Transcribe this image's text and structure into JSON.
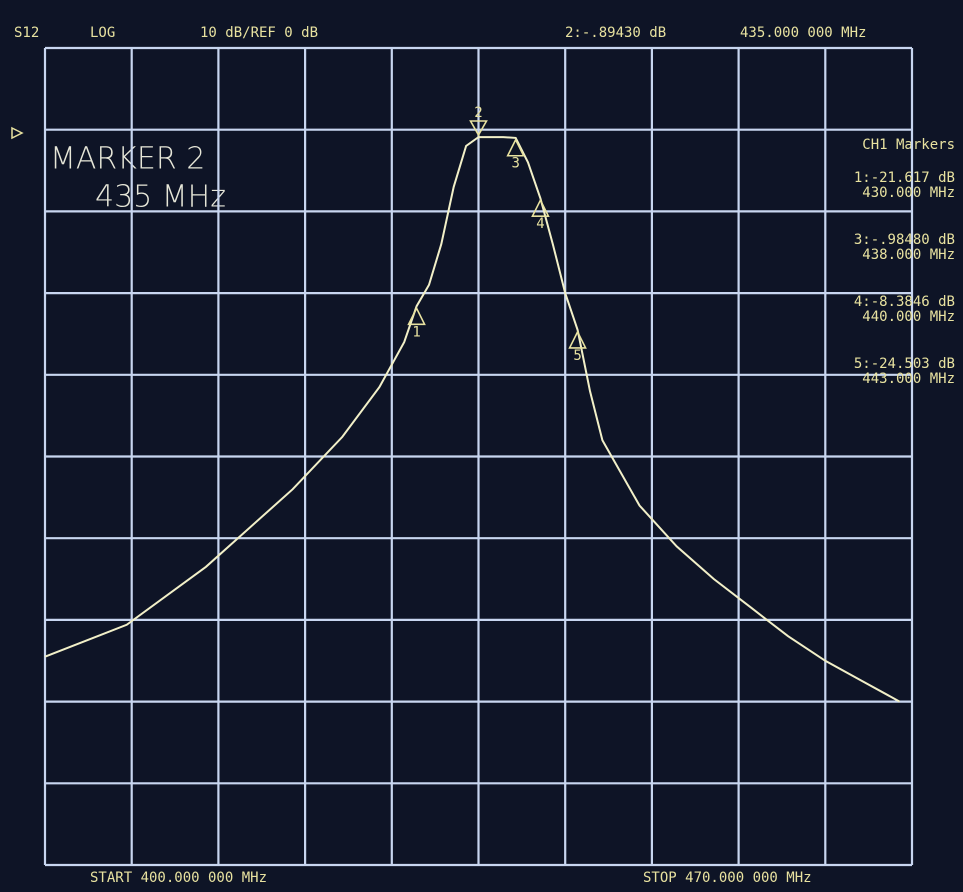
{
  "chart_data": {
    "type": "line",
    "header": {
      "param": "S12",
      "format": "LOG",
      "scale": "10 dB/REF 0 dB",
      "active_marker": "2:-.89430 dB",
      "active_freq": "435.000 000 MHz"
    },
    "big_marker": {
      "title": "MARKER 2",
      "freq": "435 MHz"
    },
    "marker_panel": {
      "title": "CH1 Markers",
      "entries": [
        {
          "value": "1:-21.617 dB",
          "freq": "430.000 MHz"
        },
        {
          "value": "3:-.98480 dB",
          "freq": "438.000 MHz"
        },
        {
          "value": "4:-8.3846 dB",
          "freq": "440.000 MHz"
        },
        {
          "value": "5:-24.503 dB",
          "freq": "443.000 MHz"
        }
      ]
    },
    "start": "START 400.000 000 MHz",
    "stop": "STOP 470.000 000 MHz",
    "x": [
      400,
      406.6,
      413,
      420,
      424,
      427,
      429,
      430,
      431,
      432,
      433,
      434,
      435,
      436,
      437,
      438,
      439,
      440,
      441,
      442,
      443,
      444,
      445,
      448,
      451,
      454,
      457,
      460,
      463,
      466,
      469
    ],
    "series": [
      {
        "name": "S12",
        "color": "#f2f0c8",
        "values": [
          -64.5,
          -60.6,
          -53.5,
          -44,
          -37.6,
          -31.5,
          -26,
          -21.6,
          -19,
          -14,
          -7,
          -2,
          -0.9,
          -0.9,
          -0.9,
          -1.0,
          -4,
          -8.4,
          -14,
          -20,
          -24.5,
          -32,
          -38,
          -46,
          -51,
          -55,
          -58.5,
          -62,
          -65,
          -67.5,
          -70
        ]
      }
    ],
    "markers": [
      {
        "label": "1",
        "x": 430,
        "y": -21.617
      },
      {
        "label": "2",
        "x": 435,
        "y": -0.8943
      },
      {
        "label": "3",
        "x": 438,
        "y": -0.9848
      },
      {
        "label": "4",
        "x": 440,
        "y": -8.3846
      },
      {
        "label": "5",
        "x": 443,
        "y": -24.503
      }
    ],
    "xlim": [
      400,
      470
    ],
    "ylim": [
      -90,
      10
    ],
    "xticks": [
      400,
      407,
      414,
      421,
      428,
      435,
      442,
      449,
      456,
      463,
      470
    ],
    "yticks": [
      -90,
      -80,
      -70,
      -60,
      -50,
      -40,
      -30,
      -20,
      -10,
      0,
      10
    ],
    "grid": true
  }
}
